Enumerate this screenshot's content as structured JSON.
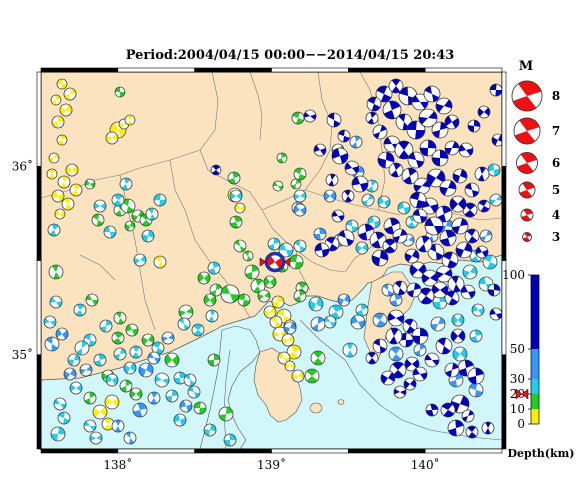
{
  "map": {
    "title": "Period:2004/04/15 00:00−−2014/04/15 20:43",
    "lon_ticks": [
      {
        "value": 138,
        "label": "138˚"
      },
      {
        "value": 139,
        "label": "139˚"
      },
      {
        "value": 140,
        "label": "140˚"
      }
    ],
    "lat_ticks": [
      {
        "value": 36,
        "label": "36˚"
      },
      {
        "value": 35,
        "label": "35˚"
      }
    ],
    "lon_range": [
      137.5,
      140.5
    ],
    "lat_range": [
      34.5,
      36.5
    ],
    "colors": {
      "land": "#fbe3bf",
      "sea": "#d2f7fa",
      "border": "#777777",
      "coast": "#555555"
    }
  },
  "magnitude_legend": {
    "title": "M",
    "items": [
      {
        "label": "8"
      },
      {
        "label": "7"
      },
      {
        "label": "6"
      },
      {
        "label": "5"
      },
      {
        "label": "4"
      },
      {
        "label": "3"
      }
    ]
  },
  "depth_legend": {
    "title": "Depth(km)",
    "ticks": [
      {
        "value": 100,
        "label": "100"
      },
      {
        "value": 50,
        "label": "50"
      },
      {
        "value": 30,
        "label": "30"
      },
      {
        "value": 20,
        "label": "20"
      },
      {
        "value": 10,
        "label": "10"
      },
      {
        "value": 0,
        "label": "0"
      }
    ],
    "bands": [
      {
        "from": 0,
        "to": 10,
        "color": "#ffee00"
      },
      {
        "from": 10,
        "to": 20,
        "color": "#22cc22"
      },
      {
        "from": 20,
        "to": 30,
        "color": "#22ccee"
      },
      {
        "from": 30,
        "to": 50,
        "color": "#3399ff"
      },
      {
        "from": 50,
        "to": 100,
        "color": "#0000bb"
      }
    ],
    "pointer_depth": 20
  }
}
